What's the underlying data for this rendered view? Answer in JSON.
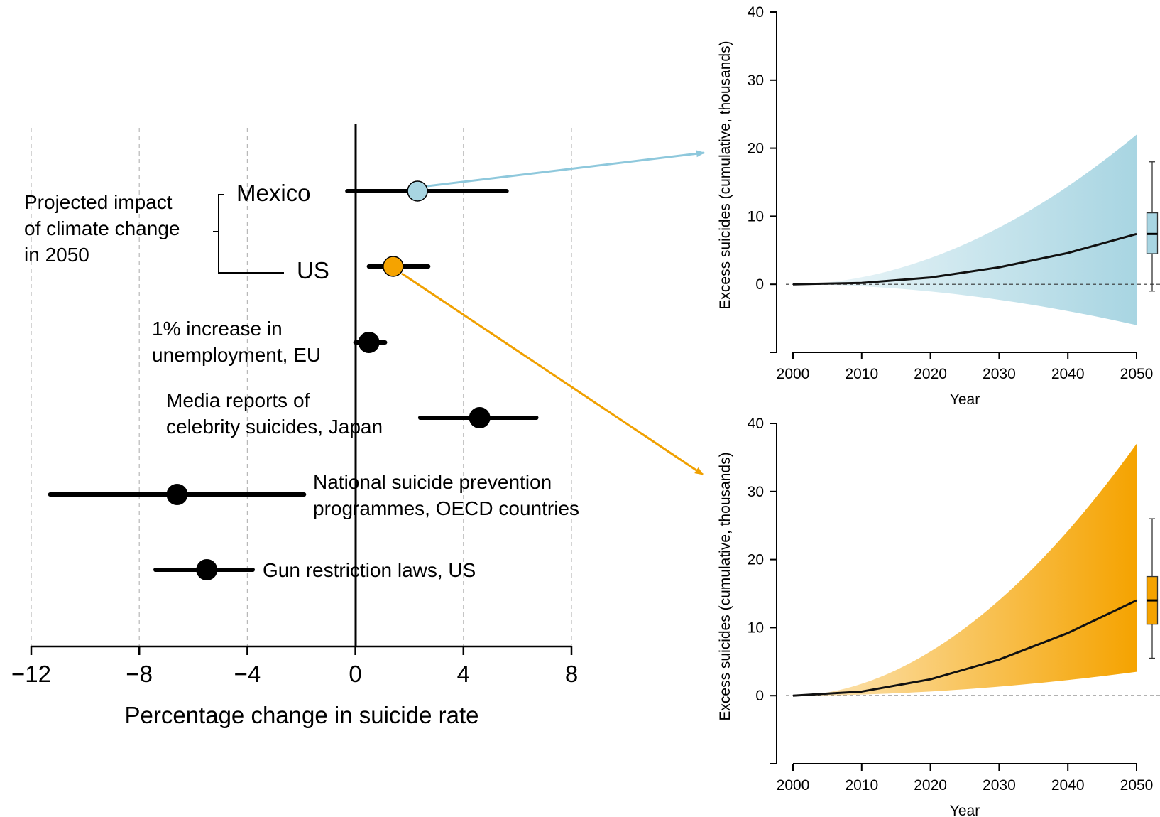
{
  "colors": {
    "mexico": "#a8d5e2",
    "us": "#f5a300",
    "mexico_arrow": "#8ec8dc",
    "us_arrow": "#f0a000",
    "black": "#000000",
    "grid": "#b8b8b8"
  },
  "chart_data": [
    {
      "type": "scatter",
      "title": "",
      "xlabel": "Percentage change in suicide rate",
      "ylabel": "",
      "xlim": [
        -12,
        8
      ],
      "xticks": [
        -12,
        -8,
        -4,
        0,
        4,
        8
      ],
      "xtick_labels": [
        "−12",
        "−8",
        "−4",
        "0",
        "4",
        "8"
      ],
      "grid": "vertical dashed",
      "group_label": [
        "Projected impact",
        "of climate change",
        "in 2050"
      ],
      "points": [
        {
          "label": [
            "Mexico"
          ],
          "estimate": 2.3,
          "low": -0.3,
          "high": 5.6,
          "color_key": "mexico"
        },
        {
          "label": [
            "US"
          ],
          "estimate": 1.4,
          "low": 0.5,
          "high": 2.7,
          "color_key": "us"
        },
        {
          "label": [
            "1% increase in",
            "unemployment, EU"
          ],
          "estimate": 0.5,
          "low": 0.0,
          "high": 1.1,
          "color_key": "black"
        },
        {
          "label": [
            "Media reports of",
            "celebrity suicides, Japan"
          ],
          "estimate": 4.6,
          "low": 2.4,
          "high": 6.7,
          "color_key": "black"
        },
        {
          "label": [
            "National suicide prevention",
            "programmes, OECD countries"
          ],
          "estimate": -6.6,
          "low": -11.3,
          "high": -1.9,
          "color_key": "black"
        },
        {
          "label": [
            "Gun restriction laws, US"
          ],
          "estimate": -5.5,
          "low": -7.4,
          "high": -3.8,
          "color_key": "black"
        }
      ]
    },
    {
      "type": "area",
      "title": "",
      "country": "Mexico",
      "color_key": "mexico",
      "xlabel": "Year",
      "ylabel": "Excess suicides (cumulative, thousands)",
      "xlim": [
        2000,
        2050
      ],
      "ylim": [
        -10,
        40
      ],
      "xticks": [
        2000,
        2010,
        2020,
        2030,
        2040,
        2050
      ],
      "yticks": [
        0,
        10,
        20,
        30,
        40
      ],
      "median": {
        "x": [
          2000,
          2010,
          2020,
          2030,
          2040,
          2050
        ],
        "y": [
          0,
          0.2,
          1.0,
          2.5,
          4.6,
          7.4
        ]
      },
      "band_upper": 22,
      "band_lower": -6,
      "boxplot": {
        "min": -1,
        "q1": 4.5,
        "median": 7.4,
        "q3": 10.5,
        "max": 18
      }
    },
    {
      "type": "area",
      "title": "",
      "country": "US",
      "color_key": "us",
      "xlabel": "Year",
      "ylabel": "Excess suicides (cumulative, thousands)",
      "xlim": [
        2000,
        2050
      ],
      "ylim": [
        -10,
        40
      ],
      "xticks": [
        2000,
        2010,
        2020,
        2030,
        2040,
        2050
      ],
      "yticks": [
        0,
        10,
        20,
        30,
        40
      ],
      "median": {
        "x": [
          2000,
          2010,
          2020,
          2030,
          2040,
          2050
        ],
        "y": [
          0,
          0.6,
          2.4,
          5.3,
          9.2,
          14
        ]
      },
      "band_upper": 37,
      "band_lower": 3.5,
      "boxplot": {
        "min": 5.5,
        "q1": 10.5,
        "median": 14,
        "q3": 17.5,
        "max": 26
      }
    }
  ]
}
